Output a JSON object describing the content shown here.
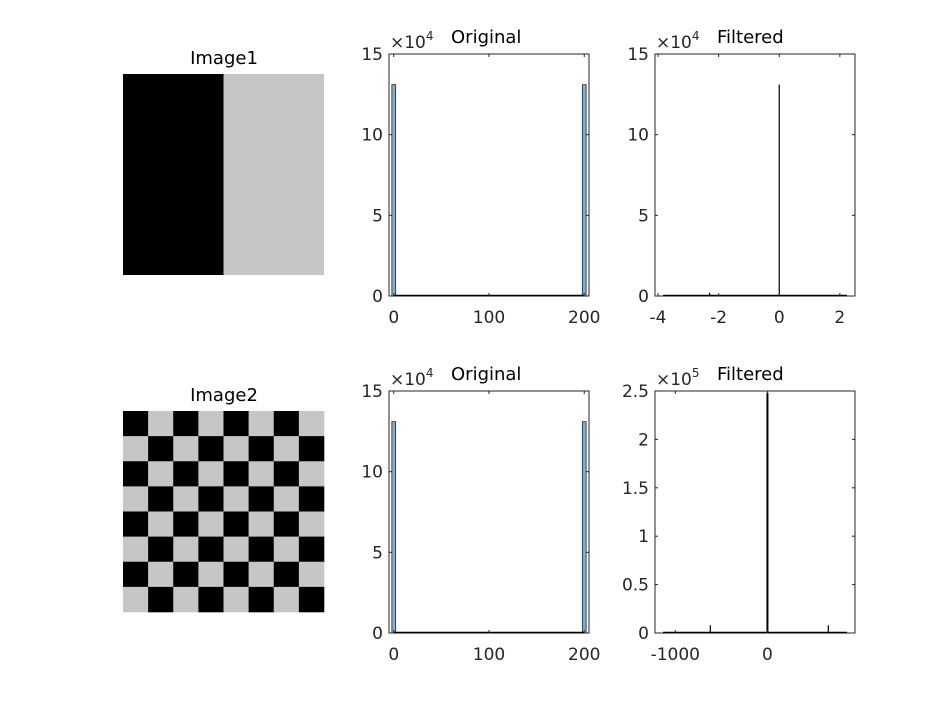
{
  "images": [
    {
      "title": "Image1",
      "pattern": "halves",
      "colors": {
        "dark": "#000000",
        "light": "#c6c6c6"
      }
    },
    {
      "title": "Image2",
      "pattern": "checkerboard",
      "rows": 8,
      "cols": 8,
      "colors": {
        "dark": "#000000",
        "light": "#c6c6c6"
      }
    }
  ],
  "chart_data": [
    {
      "type": "bar",
      "title": "Original",
      "exponent": {
        "base": "×10",
        "power": "4"
      },
      "xlim": [
        -5,
        205
      ],
      "ylim": [
        0,
        15
      ],
      "xticks": [
        0,
        100,
        200
      ],
      "xtick_labels": [
        "0",
        "100",
        "200"
      ],
      "yticks": [
        0,
        5,
        10,
        15
      ],
      "ytick_labels": [
        "0",
        "5",
        "10",
        "15"
      ],
      "bar_width": 4,
      "bars": [
        {
          "x": 0,
          "value": 13.1
        },
        {
          "x": 200,
          "value": 13.1
        }
      ],
      "bar_color": "#7eb0d5"
    },
    {
      "type": "bar",
      "title": "Filtered",
      "exponent": {
        "base": "×10",
        "power": "4"
      },
      "xlim": [
        -4.1,
        2.5
      ],
      "ylim": [
        0,
        15
      ],
      "xticks": [
        -4,
        -2,
        0,
        2
      ],
      "xtick_labels": [
        "-4",
        "-2",
        "0",
        "2"
      ],
      "yticks": [
        0,
        5,
        10,
        15
      ],
      "ytick_labels": [
        "0",
        "5",
        "10",
        "15"
      ],
      "bars": [
        {
          "x": 0,
          "value": 13.1
        },
        {
          "x": -2.3,
          "value": 0.2
        }
      ],
      "bar_color": "#000000"
    },
    {
      "type": "bar",
      "title": "Original",
      "exponent": {
        "base": "×10",
        "power": "4"
      },
      "xlim": [
        -5,
        205
      ],
      "ylim": [
        0,
        15
      ],
      "xticks": [
        0,
        100,
        200
      ],
      "xtick_labels": [
        "0",
        "100",
        "200"
      ],
      "yticks": [
        0,
        5,
        10,
        15
      ],
      "ytick_labels": [
        "0",
        "5",
        "10",
        "15"
      ],
      "bar_width": 4,
      "bars": [
        {
          "x": 0,
          "value": 13.1
        },
        {
          "x": 200,
          "value": 13.1
        }
      ],
      "bar_color": "#7eb0d5"
    },
    {
      "type": "bar",
      "title": "Filtered",
      "exponent": {
        "base": "×10",
        "power": "5"
      },
      "xlim": [
        -1220,
        950
      ],
      "ylim": [
        0,
        2.5
      ],
      "xticks": [
        -1000,
        0
      ],
      "xtick_labels": [
        "-1000",
        "0"
      ],
      "yticks": [
        0,
        0.5,
        1,
        1.5,
        2,
        2.5
      ],
      "ytick_labels": [
        "0",
        "0.5",
        "1",
        "1.5",
        "2",
        "2.5"
      ],
      "bars": [
        {
          "x": 0,
          "value": 2.48
        },
        {
          "x": -620,
          "value": 0.08
        },
        {
          "x": 660,
          "value": 0.08
        }
      ],
      "bar_color": "#000000"
    }
  ]
}
